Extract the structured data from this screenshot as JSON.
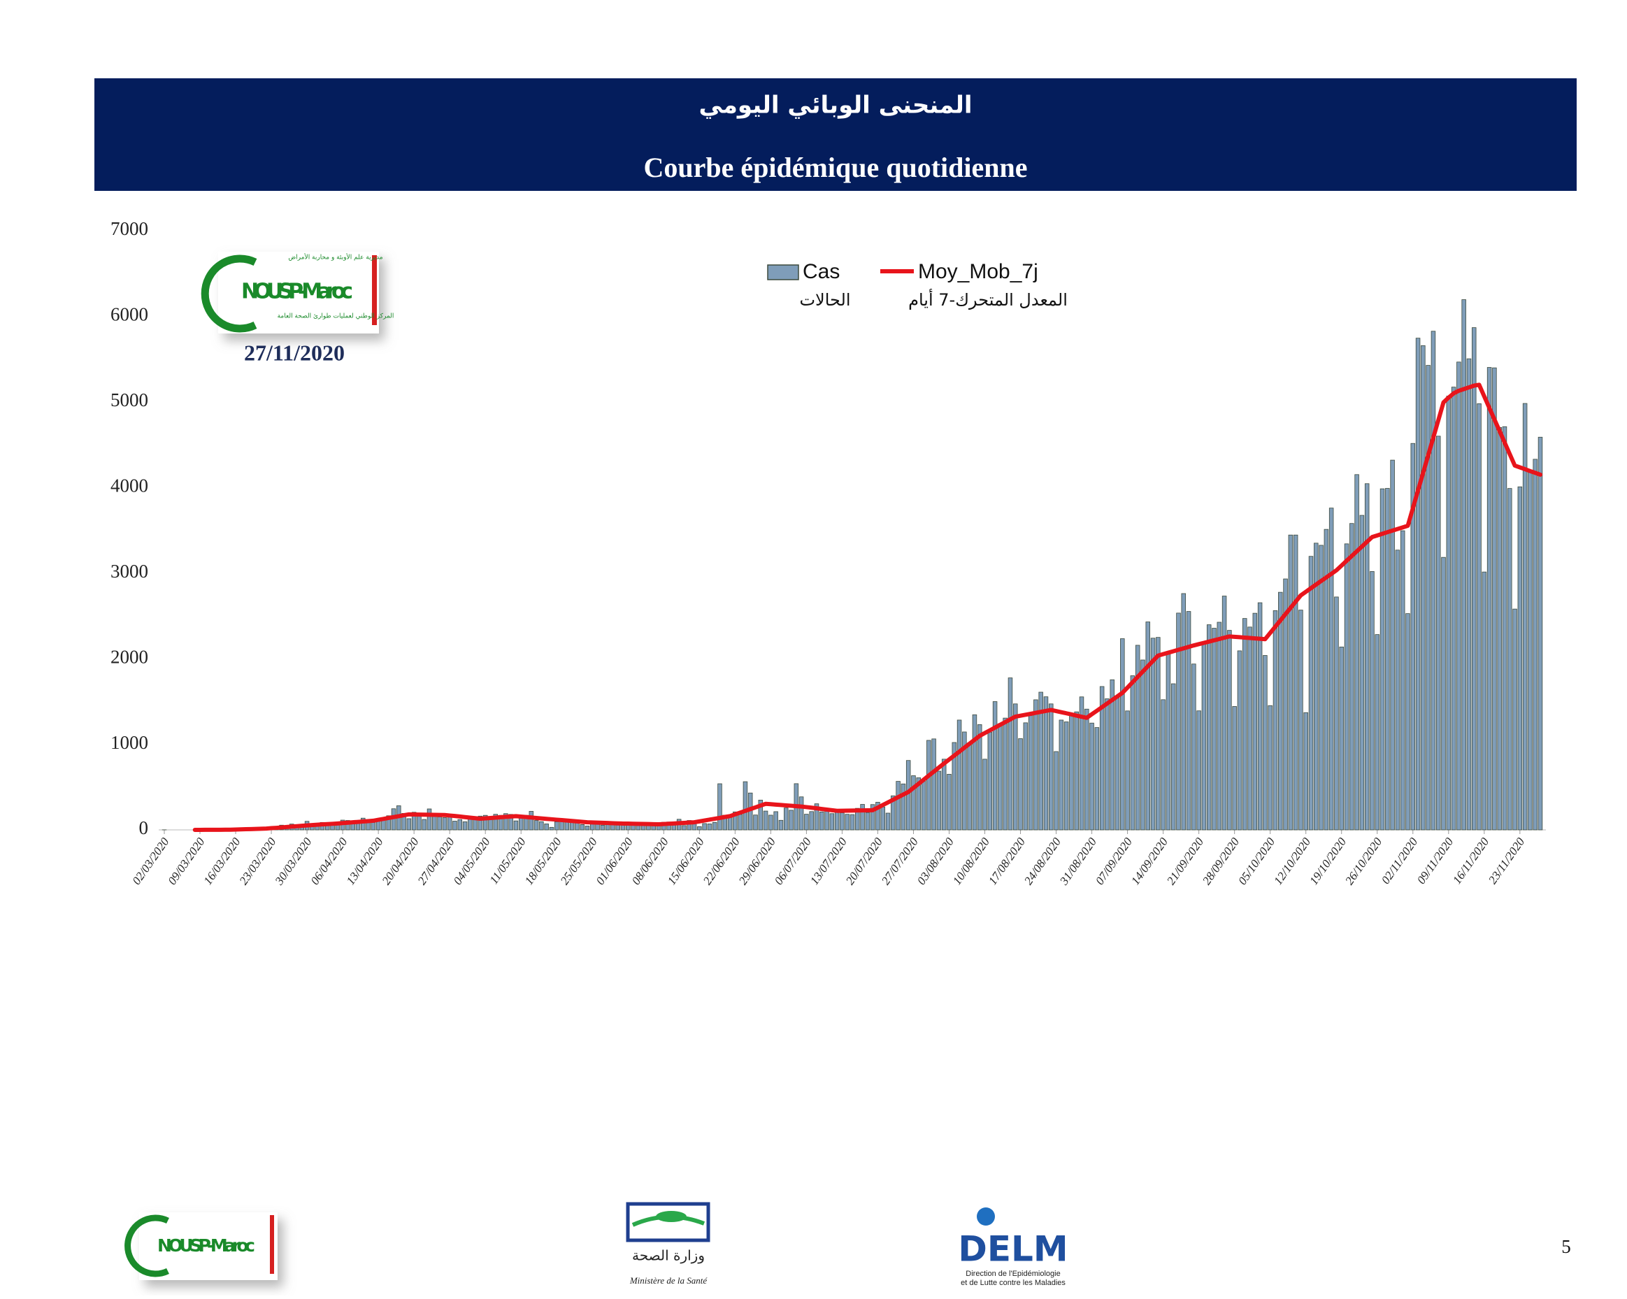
{
  "header": {
    "title_ar": "المنحنى الوبائي اليومي",
    "title_fr": "Courbe épidémique quotidienne"
  },
  "logo_top": {
    "line_ar": "مديرية علم الأوبئة و محاربة الأمراض",
    "name": "NOUSP-Maroc",
    "sub_ar": "المركز الوطني لعمليات طوارئ الصحة العامة",
    "date": "27/11/2020"
  },
  "footer": {
    "nousp": "NOUSP-Maroc",
    "ministry_ar": "وزارة الصحة",
    "ministry_fr": "Ministère de la Santé",
    "delm": "DELM",
    "delm_line1": "Direction de l'Epidémiologie",
    "delm_line2": "et de Lutte contre les Maladies",
    "page_number": "5"
  },
  "chart_data": {
    "type": "bar",
    "ylim": [
      0,
      7000
    ],
    "yticks": [
      0,
      1000,
      2000,
      3000,
      4000,
      5000,
      6000,
      7000
    ],
    "grid": false,
    "categories": [
      "02/03/2020",
      null,
      null,
      null,
      null,
      null,
      null,
      "09/03/2020",
      null,
      null,
      null,
      null,
      null,
      null,
      "16/03/2020",
      null,
      null,
      null,
      null,
      null,
      null,
      "23/03/2020",
      null,
      null,
      null,
      null,
      null,
      null,
      "30/03/2020",
      null,
      null,
      null,
      null,
      null,
      null,
      "06/04/2020",
      null,
      null,
      null,
      null,
      null,
      null,
      "13/04/2020",
      null,
      null,
      null,
      null,
      null,
      null,
      "20/04/2020",
      null,
      null,
      null,
      null,
      null,
      null,
      "27/04/2020",
      null,
      null,
      null,
      null,
      null,
      null,
      "04/05/2020",
      null,
      null,
      null,
      null,
      null,
      null,
      "11/05/2020",
      null,
      null,
      null,
      null,
      null,
      null,
      "18/05/2020",
      null,
      null,
      null,
      null,
      null,
      null,
      "25/05/2020",
      null,
      null,
      null,
      null,
      null,
      null,
      "01/06/2020",
      null,
      null,
      null,
      null,
      null,
      null,
      "08/06/2020",
      null,
      null,
      null,
      null,
      null,
      null,
      "15/06/2020",
      null,
      null,
      null,
      null,
      null,
      null,
      "22/06/2020",
      null,
      null,
      null,
      null,
      null,
      null,
      "29/06/2020",
      null,
      null,
      null,
      null,
      null,
      null,
      "06/07/2020",
      null,
      null,
      null,
      null,
      null,
      null,
      "13/07/2020",
      null,
      null,
      null,
      null,
      null,
      null,
      "20/07/2020",
      null,
      null,
      null,
      null,
      null,
      null,
      "27/07/2020",
      null,
      null,
      null,
      null,
      null,
      null,
      "03/08/2020",
      null,
      null,
      null,
      null,
      null,
      null,
      "10/08/2020",
      null,
      null,
      null,
      null,
      null,
      null,
      "17/08/2020",
      null,
      null,
      null,
      null,
      null,
      null,
      "24/08/2020",
      null,
      null,
      null,
      null,
      null,
      null,
      "31/08/2020",
      null,
      null,
      null,
      null,
      null,
      null,
      "07/09/2020",
      null,
      null,
      null,
      null,
      null,
      null,
      "14/09/2020",
      null,
      null,
      null,
      null,
      null,
      null,
      "21/09/2020",
      null,
      null,
      null,
      null,
      null,
      null,
      "28/09/2020",
      null,
      null,
      null,
      null,
      null,
      null,
      "05/10/2020",
      null,
      null,
      null,
      null,
      null,
      null,
      "12/10/2020",
      null,
      null,
      null,
      null,
      null,
      null,
      "19/10/2020",
      null,
      null,
      null,
      null,
      null,
      null,
      "26/10/2020",
      null,
      null,
      null,
      null,
      null,
      null,
      "02/11/2020",
      null,
      null,
      null,
      null,
      null,
      null,
      "09/11/2020",
      null,
      null,
      null,
      null,
      null,
      null,
      "16/11/2020",
      null,
      null,
      null,
      null,
      null,
      null,
      "23/11/2020",
      null,
      null,
      null,
      null
    ],
    "series": [
      {
        "name": "Cas",
        "label_ar": "الحالات",
        "color": "#7f9db9",
        "values": [
          1,
          0,
          0,
          0,
          0,
          0,
          0,
          0,
          2,
          1,
          1,
          2,
          1,
          10,
          10,
          9,
          16,
          9,
          11,
          24,
          28,
          27,
          27,
          55,
          45,
          68,
          51,
          65,
          100,
          60,
          46,
          87,
          82,
          72,
          76,
          114,
          110,
          97,
          110,
          137,
          92,
          88,
          108,
          143,
          165,
          247,
          282,
          193,
          131,
          206,
          188,
          122,
          245,
          160,
          152,
          143,
          164,
          102,
          120,
          95,
          150,
          128,
          161,
          170,
          122,
          182,
          170,
          190,
          181,
          105,
          172,
          170,
          217,
          110,
          96,
          70,
          30,
          95,
          122,
          97,
          99,
          104,
          62,
          45,
          85,
          90,
          55,
          75,
          82,
          56,
          72,
          70,
          67,
          50,
          58,
          55,
          72,
          80,
          89,
          92,
          81,
          124,
          50,
          110,
          76,
          38,
          74,
          70,
          88,
          539,
          172,
          149,
          210,
          181,
          563,
          431,
          174,
          348,
          220,
          172,
          213,
          112,
          256,
          230,
          540,
          386,
          183,
          214,
          305,
          210,
          222,
          190,
          240,
          200,
          182,
          179,
          252,
          298,
          203,
          296,
          323,
          268,
          196,
          398,
          567,
          537,
          811,
          633,
          609,
          570,
          1046,
          1063,
          686,
          826,
          650,
          1021,
          1283,
          1144,
          1018,
          1345,
          1230,
          826,
          1142,
          1499,
          1241,
          1306,
          1776,
          1472,
          1066,
          1251,
          1337,
          1520,
          1609,
          1555,
          1472,
          915,
          1283,
          1262,
          1360,
          1379,
          1554,
          1411,
          1248,
          1196,
          1675,
          1532,
          1754,
          1567,
          2234,
          1390,
          1801,
          2157,
          1985,
          2430,
          2240,
          2249,
          1521,
          2070,
          1707,
          2533,
          2761,
          2552,
          1938,
          1391,
          2189,
          2397,
          2356,
          2426,
          2732,
          2331,
          1442,
          2092,
          2470,
          2370,
          2531,
          2654,
          2038,
          1452,
          2562,
          2776,
          2932,
          3445,
          3445,
          2568,
          1370,
          3196,
          3350,
          3325,
          3511,
          3760,
          2721,
          2137,
          3342,
          3580,
          4151,
          3675,
          4045,
          3019,
          2282,
          3985,
          3990,
          4320,
          3269,
          3495,
          2527,
          4515,
          5745,
          5658,
          5427,
          5826,
          4600,
          3184,
          5068,
          5173,
          5466,
          6195,
          5504,
          5868,
          4979,
          3013,
          5403,
          5398,
          4702,
          4711,
          3989,
          2580,
          4008,
          4982,
          4200,
          4330,
          4588
        ]
      },
      {
        "name": "Moy_Mob_7j",
        "label_ar": "المعدل المتحرك-7 أيام",
        "color": "#e8141b",
        "type": "line",
        "values": [
          null,
          null,
          null,
          null,
          null,
          null,
          0,
          0,
          1,
          1,
          1,
          1,
          2,
          2,
          4,
          6,
          8,
          9,
          11,
          13,
          15,
          20,
          24,
          29,
          34,
          39,
          43,
          48,
          52,
          56,
          60,
          64,
          67,
          71,
          75,
          80,
          84,
          89,
          93,
          98,
          102,
          107,
          118,
          128,
          139,
          150,
          160,
          171,
          181,
          180,
          179,
          178,
          177,
          176,
          175,
          174,
          168,
          162,
          156,
          149,
          143,
          137,
          131,
          135,
          139,
          143,
          148,
          152,
          156,
          160,
          155,
          150,
          145,
          139,
          134,
          129,
          124,
          119,
          114,
          109,
          104,
          99,
          94,
          89,
          87,
          85,
          83,
          81,
          78,
          76,
          74,
          73,
          71,
          70,
          69,
          68,
          66,
          65,
          68,
          72,
          75,
          79,
          82,
          86,
          89,
          99,
          110,
          120,
          130,
          140,
          151,
          161,
          181,
          202,
          222,
          243,
          263,
          284,
          304,
          300,
          295,
          291,
          286,
          282,
          277,
          273,
          266,
          259,
          252,
          244,
          237,
          230,
          223,
          224,
          225,
          226,
          227,
          228,
          229,
          230,
          260,
          291,
          321,
          352,
          382,
          413,
          443,
          491,
          538,
          586,
          634,
          681,
          729,
          776,
          822,
          868,
          914,
          961,
          1007,
          1053,
          1099,
          1131,
          1163,
          1195,
          1227,
          1259,
          1291,
          1323,
          1334,
          1345,
          1356,
          1368,
          1379,
          1390,
          1401,
          1388,
          1375,
          1362,
          1349,
          1335,
          1322,
          1309,
          1351,
          1392,
          1434,
          1476,
          1518,
          1559,
          1601,
          1663,
          1725,
          1787,
          1850,
          1912,
          1974,
          2036,
          2053,
          2070,
          2087,
          2104,
          2121,
          2138,
          2155,
          2170,
          2185,
          2200,
          2215,
          2230,
          2245,
          2260,
          2255,
          2251,
          2246,
          2242,
          2237,
          2233,
          2228,
          2301,
          2374,
          2447,
          2521,
          2594,
          2667,
          2740,
          2782,
          2824,
          2866,
          2908,
          2949,
          2991,
          3033,
          3088,
          3144,
          3199,
          3255,
          3310,
          3366,
          3421,
          3440,
          3459,
          3478,
          3497,
          3515,
          3534,
          3553,
          3759,
          3965,
          4170,
          4376,
          4582,
          4788,
          4994,
          5050,
          5100,
          5130,
          5150,
          5170,
          5190,
          5200,
          5065,
          4930,
          4795,
          4661,
          4526,
          4391,
          4256,
          4235,
          4214,
          4192,
          4171,
          4150
        ]
      }
    ]
  }
}
